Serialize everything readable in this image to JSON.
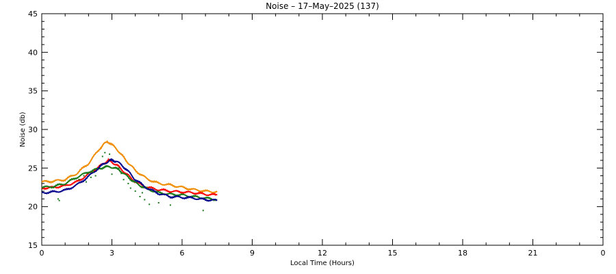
{
  "chart_data": {
    "type": "line",
    "title": "Noise  –  17–May–2025 (137)",
    "xlabel": "Local Time (Hours)",
    "ylabel": "Noise (db)",
    "xlim": [
      0,
      24
    ],
    "ylim": [
      15,
      45
    ],
    "x_tick_labels": [
      "0",
      "3",
      "6",
      "9",
      "12",
      "15",
      "18",
      "21",
      "0"
    ],
    "y_tick_labels": [
      "15",
      "20",
      "25",
      "30",
      "35",
      "40",
      "45"
    ],
    "grid": false,
    "series": [
      {
        "color": "#f08c00",
        "x": [
          0,
          0.5,
          1.0,
          1.5,
          2.0,
          2.5,
          2.8,
          3.2,
          3.6,
          4.0,
          4.5,
          5.0,
          5.5,
          6.0,
          6.5,
          7.0,
          7.5
        ],
        "y": [
          23.2,
          23.3,
          23.5,
          24.3,
          25.6,
          27.6,
          28.5,
          27.5,
          26.0,
          24.7,
          23.6,
          23.0,
          22.8,
          22.5,
          22.2,
          22.0,
          21.9
        ]
      },
      {
        "color": "#ff0000",
        "x": [
          0,
          0.5,
          1.0,
          1.5,
          2.0,
          2.5,
          2.85,
          3.2,
          3.6,
          4.0,
          4.5,
          5.0,
          5.5,
          6.0,
          6.5,
          7.0,
          7.5
        ],
        "y": [
          22.4,
          22.5,
          22.7,
          23.2,
          24.2,
          25.3,
          26.0,
          25.4,
          24.3,
          23.2,
          22.5,
          22.2,
          22.0,
          21.9,
          21.8,
          21.6,
          21.5
        ]
      },
      {
        "color": "#1a7a1a",
        "x": [
          0,
          0.5,
          1.0,
          1.5,
          2.0,
          2.5,
          2.9,
          3.3,
          3.7,
          4.1,
          4.5,
          5.0,
          5.5,
          6.0,
          6.5,
          7.0,
          7.5
        ],
        "y": [
          22.5,
          22.6,
          23.0,
          23.8,
          24.5,
          25.0,
          25.2,
          24.8,
          23.8,
          22.9,
          22.3,
          21.8,
          21.6,
          21.5,
          21.3,
          21.1,
          20.9
        ]
      },
      {
        "color": "#00008b",
        "x": [
          0,
          0.5,
          1.0,
          1.5,
          2.0,
          2.5,
          2.9,
          3.2,
          3.6,
          4.0,
          4.5,
          5.0,
          5.5,
          6.0,
          6.5,
          7.0,
          7.5
        ],
        "y": [
          21.8,
          21.9,
          22.1,
          22.8,
          23.9,
          25.2,
          26.0,
          25.9,
          24.9,
          23.5,
          22.4,
          21.7,
          21.3,
          21.2,
          21.1,
          20.9,
          20.8
        ]
      }
    ],
    "scatter_series": [
      {
        "color": "#1a7a1a",
        "x": [
          0.7,
          0.75,
          1.6,
          1.8,
          1.9,
          2.1,
          2.2,
          2.3,
          2.6,
          2.7,
          2.9,
          3.0,
          3.3,
          3.4,
          3.5,
          3.7,
          3.8,
          4.0,
          4.2,
          4.3,
          4.4,
          4.6,
          5.0,
          5.5,
          6.9
        ],
        "y": [
          21.0,
          20.8,
          23.5,
          24.0,
          23.2,
          23.8,
          24.5,
          24.0,
          26.5,
          27.0,
          26.8,
          24.2,
          25.0,
          24.3,
          23.5,
          23.0,
          22.4,
          22.0,
          21.3,
          21.8,
          20.9,
          20.3,
          20.5,
          20.2,
          19.5
        ]
      }
    ]
  }
}
